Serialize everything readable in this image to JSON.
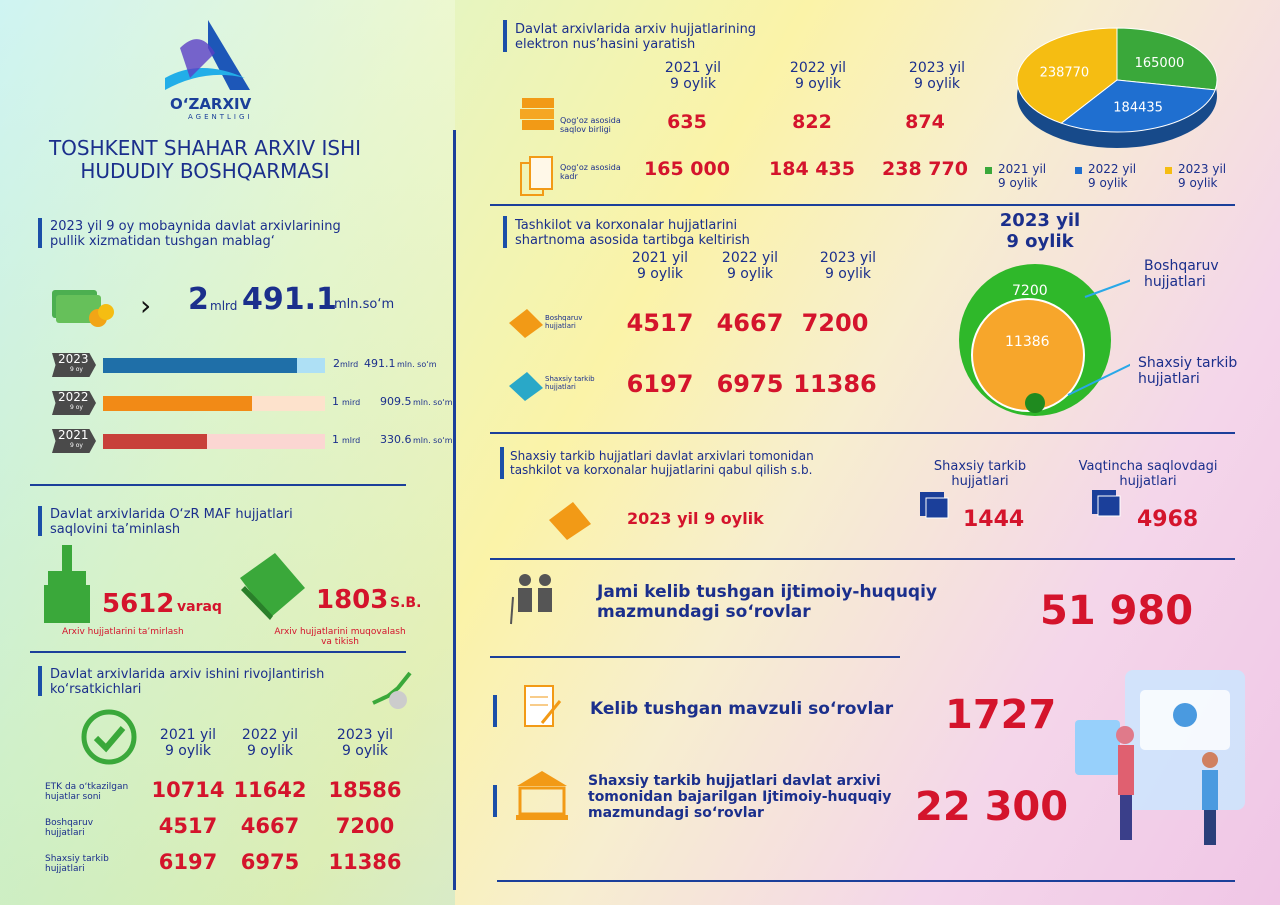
{
  "header": {
    "logo_text": "O‘ZARXIV",
    "logo_sub": "AGENTLIGI",
    "title": "TOSHKENT SHAHAR ARXIV ISHI\nHUDUDIY BOSHQARMASI"
  },
  "income": {
    "title": "2023 yil 9 oy mobaynida davlat arxivlarining\npullik xizmatidan tushgan mablag‘",
    "total": {
      "mlrd": "2",
      "mlrd_unit": "mlrd",
      "mln": "491.1",
      "unit": "mln.so‘m"
    },
    "years": [
      {
        "year": "2023",
        "period": "9 oy",
        "mlrd": "2",
        "mlrd_unit": "mlrd",
        "mln": "491.1",
        "unit": "mln. so‘m"
      },
      {
        "year": "2022",
        "period": "9 oy",
        "mlrd": "1",
        "mlrd_unit": "mird",
        "mln": "909.5",
        "unit": "mln. so‘m"
      },
      {
        "year": "2021",
        "period": "9 oy",
        "mlrd": "1",
        "mlrd_unit": "mlrd",
        "mln": "330.6",
        "unit": "mln. so‘m"
      }
    ]
  },
  "maf": {
    "title": "Davlat arxivlarida O‘zR MAF hujjatlari\nsaqlovini ta’minlash",
    "repair": {
      "value": "5612",
      "unit": "varaq",
      "label": "Arxiv hujjatlarini ta’mirlash"
    },
    "binding": {
      "value": "1803",
      "unit": "S.B.",
      "label": "Arxiv hujjatlarini muqovalash\nva tikish"
    }
  },
  "development": {
    "title": "Davlat arxivlarida arxiv ishini rivojlantirish\nko‘rsatkichlari",
    "columns": [
      "2021 yil\n9 oylik",
      "2022 yil\n9 oylik",
      "2023 yil\n9 oylik"
    ],
    "rows": [
      {
        "label": "ETK da o‘tkazilgan\nhujatlar soni",
        "values": [
          "10714",
          "11642",
          "18586"
        ]
      },
      {
        "label": "Boshqaruv\nhujjatlari",
        "values": [
          "4517",
          "4667",
          "7200"
        ]
      },
      {
        "label": "Shaxsiy tarkib\nhujjatlari",
        "values": [
          "6197",
          "6975",
          "11386"
        ]
      }
    ]
  },
  "electronic": {
    "title": "Davlat arxivlarida arxiv hujjatlarining\nelektron nus’hasini yaratish",
    "columns": [
      "2021 yil\n9 oylik",
      "2022 yil\n9 oylik",
      "2023 yil\n9 oylik"
    ],
    "rows": [
      {
        "label": "Qog‘oz asosida\nsaqlov birligi",
        "values": [
          "635",
          "822",
          "874"
        ]
      },
      {
        "label": "Qog‘oz asosida\nkadr",
        "values": [
          "165 000",
          "184 435",
          "238 770"
        ]
      }
    ]
  },
  "chart_data": {
    "type": "pie",
    "categories": [
      "2021 yil\n9 oylik",
      "2022 yil\n9 oylik",
      "2023 yil\n9 oylik"
    ],
    "values": [
      165000,
      184435,
      238770
    ],
    "colors": [
      "#3aa83a",
      "#1f6fd0",
      "#f5bd12"
    ]
  },
  "contracts": {
    "title": "Tashkilot va korxonalar hujjatlarini\nshartnoma asosida tartibga keltirish",
    "columns": [
      "2021 yil\n9 oylik",
      "2022 yil\n9 oylik",
      "2023 yil\n9 oylik"
    ],
    "rows": [
      {
        "label": "Boshqaruv\nhujjatlari",
        "values": [
          "4517",
          "4667",
          "7200"
        ]
      },
      {
        "label": "Shaxsiy tarkib\nhujjatlari",
        "values": [
          "6197",
          "6975",
          "11386"
        ]
      }
    ],
    "circles": {
      "title": "2023 yil\n9 oylik",
      "outer_value": "7200",
      "inner_value": "11386",
      "outer_label": "Boshqaruv\nhujjatlari",
      "inner_label": "Shaxsiy tarkib\nhujjatlari"
    }
  },
  "acceptance": {
    "title": "Shaxsiy tarkib hujjatlari davlat arxivlari tomonidan\ntashkilot va korxonalar hujjatlarini qabul qilish s.b.",
    "period": "2023 yil 9 oylik",
    "items": [
      {
        "label": "Shaxsiy tarkib\nhujjatlari",
        "value": "1444"
      },
      {
        "label": "Vaqtincha saqlovdagi\nhujjatlari",
        "value": "4968"
      }
    ]
  },
  "requests": [
    {
      "label": "Jami kelib tushgan ijtimoiy-huquqiy\nmazmundagi so‘rovlar",
      "value": "51 980"
    },
    {
      "label": "Kelib tushgan mavzuli so‘rovlar",
      "value": "1727"
    },
    {
      "label": "Shaxsiy tarkib hujjatlari davlat arxivi\ntomonidan bajarilgan Ijtimoiy-huquqiy\nmazmundagi so‘rovlar",
      "value": "22 300"
    }
  ]
}
